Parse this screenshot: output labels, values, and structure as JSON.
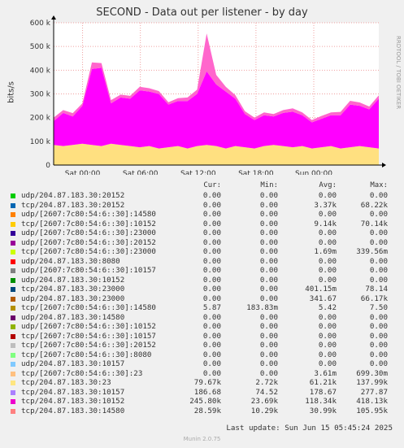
{
  "title": "SECOND - Data out per listener - by day",
  "side_label": "RRDTOOL / TOBI OETIKER",
  "last_update": "Last update: Sun Jun 15 05:45:24 2025",
  "footer": "Munin 2.0.75",
  "headers": {
    "cur": "Cur:",
    "min": "Min:",
    "avg": "Avg:",
    "max": "Max:"
  },
  "chart_data": {
    "type": "area",
    "title": "SECOND - Data out per listener - by day",
    "ylabel": "bits/s",
    "xlabel": "",
    "x_ticks": [
      "Sat 00:00",
      "Sat 06:00",
      "Sat 12:00",
      "Sat 18:00",
      "Sun 00:00"
    ],
    "x_tick_hours": [
      3,
      9,
      15,
      21,
      27
    ],
    "xlim_hours": [
      0,
      33.75
    ],
    "y_ticks": [
      "0",
      "100 k",
      "200 k",
      "300 k",
      "400 k",
      "500 k",
      "600 k"
    ],
    "ylim": [
      0,
      600000
    ],
    "grid": true,
    "stacked_series_approx": [
      {
        "name": "tcp/204.87.183.30:23",
        "color": "#ffe080",
        "values_k": [
          85,
          80,
          85,
          90,
          85,
          80,
          90,
          85,
          80,
          75,
          80,
          70,
          75,
          80,
          70,
          80,
          85,
          80,
          70,
          80,
          75,
          70,
          80,
          85,
          80,
          75,
          80,
          70,
          75,
          80,
          70,
          75,
          80,
          75,
          70
        ]
      },
      {
        "name": "tcp/204.87.183.30:10152",
        "color": "#ff00ff",
        "values_k": [
          100,
          140,
          120,
          160,
          320,
          330,
          170,
          200,
          200,
          240,
          230,
          230,
          180,
          190,
          200,
          220,
          310,
          260,
          240,
          200,
          140,
          120,
          130,
          120,
          140,
          150,
          130,
          110,
          120,
          130,
          140,
          180,
          170,
          160,
          210
        ]
      },
      {
        "name": "tcp/204.87.183.30:14580",
        "color": "#ff66cc",
        "values_k": [
          15,
          12,
          14,
          10,
          28,
          20,
          14,
          12,
          12,
          15,
          14,
          12,
          10,
          12,
          15,
          18,
          160,
          40,
          20,
          15,
          12,
          10,
          12,
          10,
          12,
          14,
          12,
          10,
          12,
          12,
          14,
          16,
          14,
          12,
          14
        ]
      }
    ],
    "legend": [
      {
        "name": "udp/204.87.183.30:20152",
        "color": "#00cc00",
        "cur": "0.00",
        "min": "0.00",
        "avg": "0.00",
        "max": "0.00"
      },
      {
        "name": "tcp/204.87.183.30:20152",
        "color": "#0066b3",
        "cur": "0.00",
        "min": "0.00",
        "avg": "3.37k",
        "max": "68.22k"
      },
      {
        "name": "udp/[2607:7c80:54:6::30]:14580",
        "color": "#ff8000",
        "cur": "0.00",
        "min": "0.00",
        "avg": "0.00",
        "max": "0.00"
      },
      {
        "name": "tcp/[2607:7c80:54:6::30]:10152",
        "color": "#ffcc00",
        "cur": "0.00",
        "min": "0.00",
        "avg": "9.14k",
        "max": "70.14k"
      },
      {
        "name": "udp/[2607:7c80:54:6::30]:23000",
        "color": "#330099",
        "cur": "0.00",
        "min": "0.00",
        "avg": "0.00",
        "max": "0.00"
      },
      {
        "name": "udp/[2607:7c80:54:6::30]:20152",
        "color": "#990099",
        "cur": "0.00",
        "min": "0.00",
        "avg": "0.00",
        "max": "0.00"
      },
      {
        "name": "tcp/[2607:7c80:54:6::30]:23000",
        "color": "#ccff00",
        "cur": "0.00",
        "min": "0.00",
        "avg": "1.69m",
        "max": "339.56m"
      },
      {
        "name": "udp/204.87.183.30:8080",
        "color": "#ff0000",
        "cur": "0.00",
        "min": "0.00",
        "avg": "0.00",
        "max": "0.00"
      },
      {
        "name": "udp/[2607:7c80:54:6::30]:10157",
        "color": "#808080",
        "cur": "0.00",
        "min": "0.00",
        "avg": "0.00",
        "max": "0.00"
      },
      {
        "name": "udp/204.87.183.30:10152",
        "color": "#008f00",
        "cur": "0.00",
        "min": "0.00",
        "avg": "0.00",
        "max": "0.00"
      },
      {
        "name": "tcp/204.87.183.30:23000",
        "color": "#00487d",
        "cur": "0.00",
        "min": "0.00",
        "avg": "401.15m",
        "max": "78.14"
      },
      {
        "name": "udp/204.87.183.30:23000",
        "color": "#b35a00",
        "cur": "0.00",
        "min": "0.00",
        "avg": "341.67",
        "max": "66.17k"
      },
      {
        "name": "tcp/[2607:7c80:54:6::30]:14580",
        "color": "#b38f00",
        "cur": "5.87",
        "min": "183.83m",
        "avg": "5.42",
        "max": "7.50"
      },
      {
        "name": "udp/204.87.183.30:14580",
        "color": "#6b006b",
        "cur": "0.00",
        "min": "0.00",
        "avg": "0.00",
        "max": "0.00"
      },
      {
        "name": "udp/[2607:7c80:54:6::30]:10152",
        "color": "#8fb300",
        "cur": "0.00",
        "min": "0.00",
        "avg": "0.00",
        "max": "0.00"
      },
      {
        "name": "tcp/[2607:7c80:54:6::30]:10157",
        "color": "#b30000",
        "cur": "0.00",
        "min": "0.00",
        "avg": "0.00",
        "max": "0.00"
      },
      {
        "name": "tcp/[2607:7c80:54:6::30]:20152",
        "color": "#bebebe",
        "cur": "0.00",
        "min": "0.00",
        "avg": "0.00",
        "max": "0.00"
      },
      {
        "name": "tcp/[2607:7c80:54:6::30]:8080",
        "color": "#80ff80",
        "cur": "0.00",
        "min": "0.00",
        "avg": "0.00",
        "max": "0.00"
      },
      {
        "name": "udp/204.87.183.30:10157",
        "color": "#80c9ff",
        "cur": "0.00",
        "min": "0.00",
        "avg": "0.00",
        "max": "0.00"
      },
      {
        "name": "tcp/[2607:7c80:54:6::30]:23",
        "color": "#ffc080",
        "cur": "0.00",
        "min": "0.00",
        "avg": "3.61m",
        "max": "699.30m"
      },
      {
        "name": "tcp/204.87.183.30:23",
        "color": "#ffe680",
        "cur": "79.67k",
        "min": "2.72k",
        "avg": "61.21k",
        "max": "137.99k"
      },
      {
        "name": "tcp/204.87.183.30:10157",
        "color": "#aa80ff",
        "cur": "186.68",
        "min": "74.52",
        "avg": "178.67",
        "max": "277.87"
      },
      {
        "name": "tcp/204.87.183.30:10152",
        "color": "#ee00cc",
        "cur": "245.80k",
        "min": "23.69k",
        "avg": "118.34k",
        "max": "418.13k"
      },
      {
        "name": "tcp/204.87.183.30:14580",
        "color": "#ff8080",
        "cur": "28.59k",
        "min": "10.29k",
        "avg": "30.99k",
        "max": "105.95k"
      }
    ]
  }
}
